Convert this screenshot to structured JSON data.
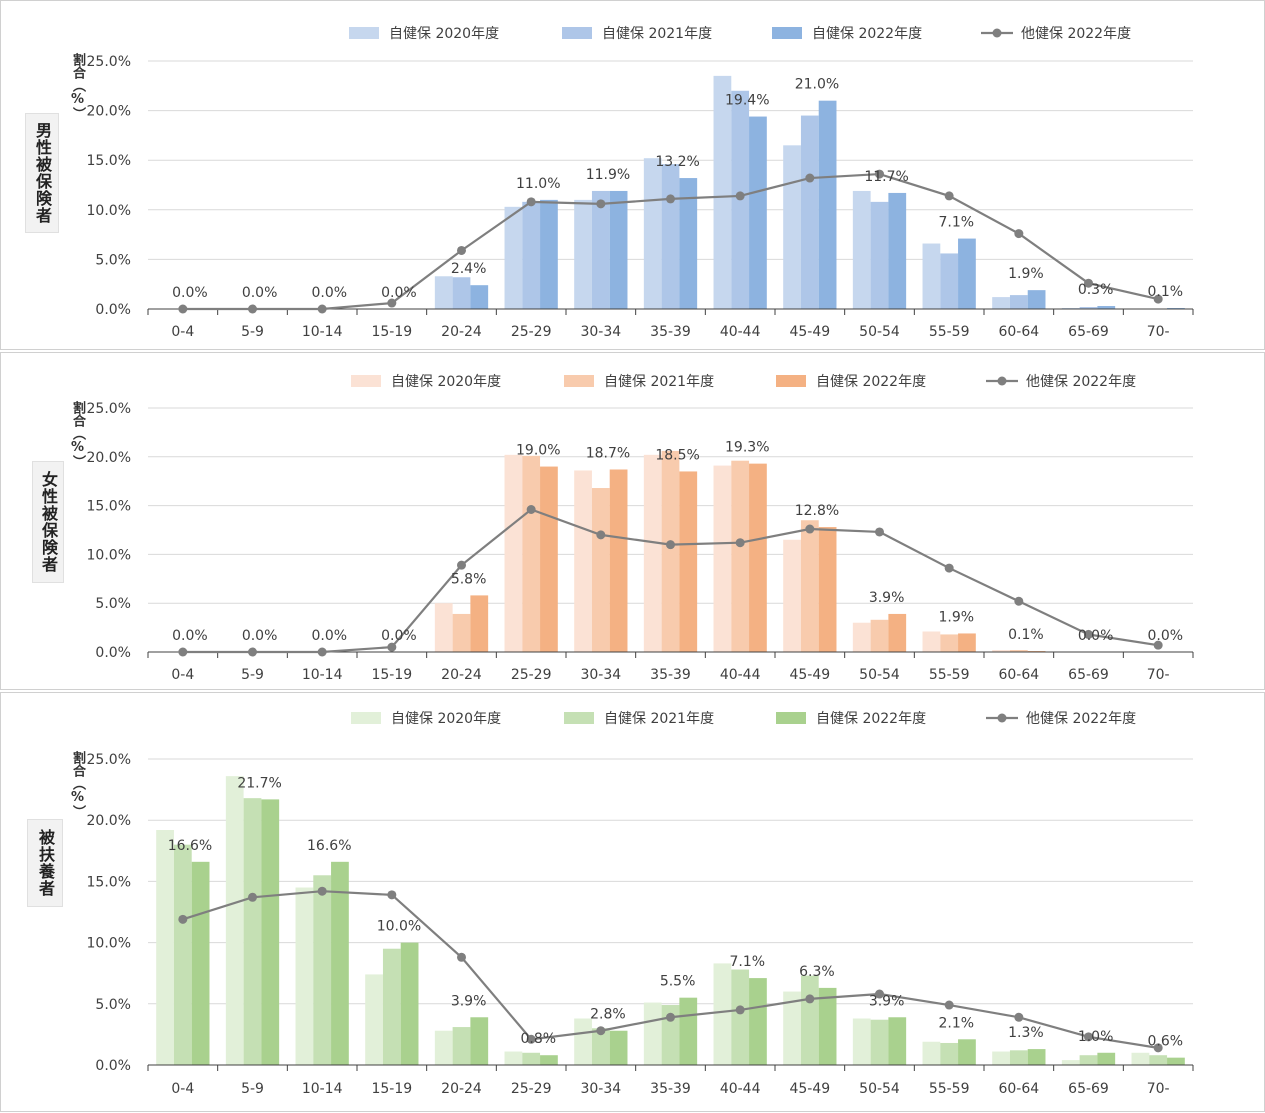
{
  "chart_data": [
    {
      "type": "bar",
      "panel_label": "男性被保険者",
      "ylabel": "割合（%）",
      "categories": [
        "0-4",
        "5-9",
        "10-14",
        "15-19",
        "20-24",
        "25-29",
        "30-34",
        "35-39",
        "40-44",
        "45-49",
        "50-54",
        "55-59",
        "60-64",
        "65-69",
        "70-"
      ],
      "ylim": [
        0,
        25
      ],
      "yticks": [
        "0.0%",
        "5.0%",
        "10.0%",
        "15.0%",
        "20.0%",
        "25.0%"
      ],
      "legend": "top",
      "grid": true,
      "series": [
        {
          "name": "自健保 2020年度",
          "type": "bar",
          "color": "#c6d7ee",
          "values": [
            0,
            0,
            0,
            0,
            3.3,
            10.3,
            11.0,
            15.2,
            23.5,
            16.5,
            11.9,
            6.6,
            1.2,
            0.1,
            0
          ]
        },
        {
          "name": "自健保 2021年度",
          "type": "bar",
          "color": "#aec6e8",
          "values": [
            0,
            0,
            0,
            0,
            3.2,
            10.8,
            11.9,
            14.6,
            22.0,
            19.5,
            10.8,
            5.6,
            1.4,
            0.2,
            0
          ]
        },
        {
          "name": "自健保 2022年度",
          "type": "bar",
          "color": "#8db3e0",
          "values": [
            0,
            0,
            0,
            0,
            2.4,
            11.0,
            11.9,
            13.2,
            19.4,
            21.0,
            11.7,
            7.1,
            1.9,
            0.3,
            0.1
          ]
        },
        {
          "name": "他健保 2022年度",
          "type": "line",
          "color": "#7f7f7f",
          "values": [
            0,
            0,
            0,
            0.6,
            5.9,
            10.8,
            10.6,
            11.1,
            11.4,
            13.2,
            13.6,
            11.4,
            7.6,
            2.6,
            1.0
          ]
        }
      ],
      "data_labels": [
        "0.0%",
        "0.0%",
        "0.0%",
        "0.0%",
        "2.4%",
        "11.0%",
        "11.9%",
        "13.2%",
        "19.4%",
        "21.0%",
        "11.7%",
        "7.1%",
        "1.9%",
        "0.3%",
        "0.1%"
      ]
    },
    {
      "type": "bar",
      "panel_label": "女性被保険者",
      "ylabel": "割合（%）",
      "categories": [
        "0-4",
        "5-9",
        "10-14",
        "15-19",
        "20-24",
        "25-29",
        "30-34",
        "35-39",
        "40-44",
        "45-49",
        "50-54",
        "55-59",
        "60-64",
        "65-69",
        "70-"
      ],
      "ylim": [
        0,
        25
      ],
      "yticks": [
        "0.0%",
        "5.0%",
        "10.0%",
        "15.0%",
        "20.0%",
        "25.0%"
      ],
      "legend": "top",
      "grid": true,
      "series": [
        {
          "name": "自健保 2020年度",
          "type": "bar",
          "color": "#fbe2d5",
          "values": [
            0,
            0,
            0,
            0,
            5.0,
            20.2,
            18.6,
            20.2,
            19.1,
            11.5,
            3.0,
            2.1,
            0.2,
            0,
            0
          ]
        },
        {
          "name": "自健保 2021年度",
          "type": "bar",
          "color": "#f8cbad",
          "values": [
            0,
            0,
            0,
            0,
            3.9,
            20.1,
            16.8,
            20.6,
            19.6,
            13.5,
            3.3,
            1.8,
            0.2,
            0,
            0
          ]
        },
        {
          "name": "自健保 2022年度",
          "type": "bar",
          "color": "#f4b183",
          "values": [
            0,
            0,
            0,
            0,
            5.8,
            19.0,
            18.7,
            18.5,
            19.3,
            12.8,
            3.9,
            1.9,
            0.1,
            0,
            0
          ]
        },
        {
          "name": "他健保 2022年度",
          "type": "line",
          "color": "#7f7f7f",
          "values": [
            0,
            0,
            0,
            0.5,
            8.9,
            14.6,
            12.0,
            11.0,
            11.2,
            12.6,
            12.3,
            8.6,
            5.2,
            1.8,
            0.7
          ]
        }
      ],
      "data_labels": [
        "0.0%",
        "0.0%",
        "0.0%",
        "0.0%",
        "5.8%",
        "19.0%",
        "18.7%",
        "18.5%",
        "19.3%",
        "12.8%",
        "3.9%",
        "1.9%",
        "0.1%",
        "0.0%",
        "0.0%"
      ]
    },
    {
      "type": "bar",
      "panel_label": "被扶養者",
      "ylabel": "割合（%）",
      "categories": [
        "0-4",
        "5-9",
        "10-14",
        "15-19",
        "20-24",
        "25-29",
        "30-34",
        "35-39",
        "40-44",
        "45-49",
        "50-54",
        "55-59",
        "60-64",
        "65-69",
        "70-"
      ],
      "ylim": [
        0,
        25
      ],
      "yticks": [
        "0.0%",
        "5.0%",
        "10.0%",
        "15.0%",
        "20.0%",
        "25.0%"
      ],
      "legend": "top",
      "grid": true,
      "series": [
        {
          "name": "自健保 2020年度",
          "type": "bar",
          "color": "#e2f0d9",
          "values": [
            19.2,
            23.6,
            14.5,
            7.4,
            2.8,
            1.1,
            3.8,
            5.1,
            8.3,
            6.0,
            3.8,
            1.9,
            1.1,
            0.4,
            1.0
          ]
        },
        {
          "name": "自健保 2021年度",
          "type": "bar",
          "color": "#c5e0b4",
          "values": [
            18.0,
            21.8,
            15.5,
            9.5,
            3.1,
            1.0,
            3.0,
            4.9,
            7.8,
            7.3,
            3.7,
            1.8,
            1.2,
            0.8,
            0.8
          ]
        },
        {
          "name": "自健保 2022年度",
          "type": "bar",
          "color": "#a9d18e",
          "values": [
            16.6,
            21.7,
            16.6,
            10.0,
            3.9,
            0.8,
            2.8,
            5.5,
            7.1,
            6.3,
            3.9,
            2.1,
            1.3,
            1.0,
            0.6
          ]
        },
        {
          "name": "他健保 2022年度",
          "type": "line",
          "color": "#7f7f7f",
          "values": [
            11.9,
            13.7,
            14.2,
            13.9,
            8.8,
            2.1,
            2.8,
            3.9,
            4.5,
            5.4,
            5.8,
            4.9,
            3.9,
            2.3,
            1.4
          ]
        }
      ],
      "data_labels": [
        "16.6%",
        "21.7%",
        "16.6%",
        "10.0%",
        "3.9%",
        "0.8%",
        "2.8%",
        "5.5%",
        "7.1%",
        "6.3%",
        "3.9%",
        "2.1%",
        "1.3%",
        "1.0%",
        "0.6%"
      ]
    }
  ]
}
